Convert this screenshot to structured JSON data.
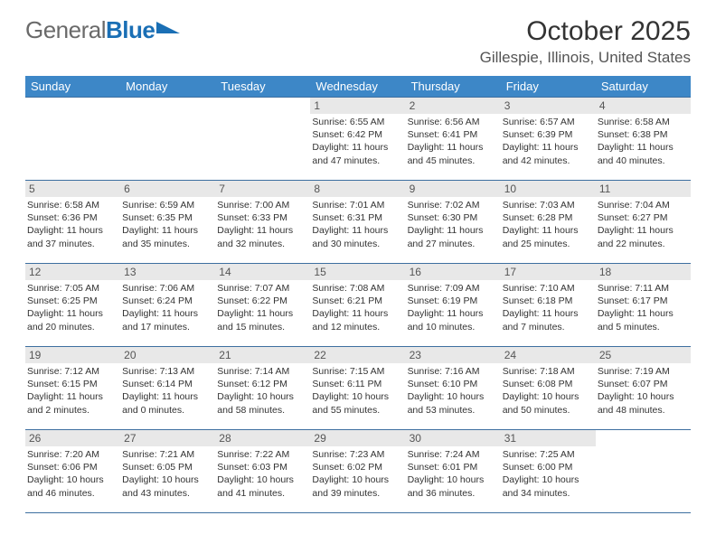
{
  "logo": {
    "part1": "General",
    "part2": "Blue"
  },
  "title": "October 2025",
  "location": "Gillespie, Illinois, United States",
  "colors": {
    "header_bg": "#3d87c7",
    "header_fg": "#ffffff",
    "daynum_bg": "#e8e8e8",
    "rule": "#3d6fa0",
    "logo_gray": "#6a6a6a",
    "logo_blue": "#1a6fb5",
    "text": "#333333",
    "background": "#ffffff"
  },
  "fonts": {
    "title_size": 30,
    "location_size": 17,
    "dayhead_size": 13,
    "daynum_size": 12,
    "body_size": 10.5
  },
  "layout": {
    "columns": 7,
    "rows": 5,
    "first_day_column": 3,
    "days_in_month": 31
  },
  "day_headers": [
    "Sunday",
    "Monday",
    "Tuesday",
    "Wednesday",
    "Thursday",
    "Friday",
    "Saturday"
  ],
  "days": [
    {
      "n": 1,
      "sr": "6:55 AM",
      "ss": "6:42 PM",
      "dl": "11 hours and 47 minutes."
    },
    {
      "n": 2,
      "sr": "6:56 AM",
      "ss": "6:41 PM",
      "dl": "11 hours and 45 minutes."
    },
    {
      "n": 3,
      "sr": "6:57 AM",
      "ss": "6:39 PM",
      "dl": "11 hours and 42 minutes."
    },
    {
      "n": 4,
      "sr": "6:58 AM",
      "ss": "6:38 PM",
      "dl": "11 hours and 40 minutes."
    },
    {
      "n": 5,
      "sr": "6:58 AM",
      "ss": "6:36 PM",
      "dl": "11 hours and 37 minutes."
    },
    {
      "n": 6,
      "sr": "6:59 AM",
      "ss": "6:35 PM",
      "dl": "11 hours and 35 minutes."
    },
    {
      "n": 7,
      "sr": "7:00 AM",
      "ss": "6:33 PM",
      "dl": "11 hours and 32 minutes."
    },
    {
      "n": 8,
      "sr": "7:01 AM",
      "ss": "6:31 PM",
      "dl": "11 hours and 30 minutes."
    },
    {
      "n": 9,
      "sr": "7:02 AM",
      "ss": "6:30 PM",
      "dl": "11 hours and 27 minutes."
    },
    {
      "n": 10,
      "sr": "7:03 AM",
      "ss": "6:28 PM",
      "dl": "11 hours and 25 minutes."
    },
    {
      "n": 11,
      "sr": "7:04 AM",
      "ss": "6:27 PM",
      "dl": "11 hours and 22 minutes."
    },
    {
      "n": 12,
      "sr": "7:05 AM",
      "ss": "6:25 PM",
      "dl": "11 hours and 20 minutes."
    },
    {
      "n": 13,
      "sr": "7:06 AM",
      "ss": "6:24 PM",
      "dl": "11 hours and 17 minutes."
    },
    {
      "n": 14,
      "sr": "7:07 AM",
      "ss": "6:22 PM",
      "dl": "11 hours and 15 minutes."
    },
    {
      "n": 15,
      "sr": "7:08 AM",
      "ss": "6:21 PM",
      "dl": "11 hours and 12 minutes."
    },
    {
      "n": 16,
      "sr": "7:09 AM",
      "ss": "6:19 PM",
      "dl": "11 hours and 10 minutes."
    },
    {
      "n": 17,
      "sr": "7:10 AM",
      "ss": "6:18 PM",
      "dl": "11 hours and 7 minutes."
    },
    {
      "n": 18,
      "sr": "7:11 AM",
      "ss": "6:17 PM",
      "dl": "11 hours and 5 minutes."
    },
    {
      "n": 19,
      "sr": "7:12 AM",
      "ss": "6:15 PM",
      "dl": "11 hours and 2 minutes."
    },
    {
      "n": 20,
      "sr": "7:13 AM",
      "ss": "6:14 PM",
      "dl": "11 hours and 0 minutes."
    },
    {
      "n": 21,
      "sr": "7:14 AM",
      "ss": "6:12 PM",
      "dl": "10 hours and 58 minutes."
    },
    {
      "n": 22,
      "sr": "7:15 AM",
      "ss": "6:11 PM",
      "dl": "10 hours and 55 minutes."
    },
    {
      "n": 23,
      "sr": "7:16 AM",
      "ss": "6:10 PM",
      "dl": "10 hours and 53 minutes."
    },
    {
      "n": 24,
      "sr": "7:18 AM",
      "ss": "6:08 PM",
      "dl": "10 hours and 50 minutes."
    },
    {
      "n": 25,
      "sr": "7:19 AM",
      "ss": "6:07 PM",
      "dl": "10 hours and 48 minutes."
    },
    {
      "n": 26,
      "sr": "7:20 AM",
      "ss": "6:06 PM",
      "dl": "10 hours and 46 minutes."
    },
    {
      "n": 27,
      "sr": "7:21 AM",
      "ss": "6:05 PM",
      "dl": "10 hours and 43 minutes."
    },
    {
      "n": 28,
      "sr": "7:22 AM",
      "ss": "6:03 PM",
      "dl": "10 hours and 41 minutes."
    },
    {
      "n": 29,
      "sr": "7:23 AM",
      "ss": "6:02 PM",
      "dl": "10 hours and 39 minutes."
    },
    {
      "n": 30,
      "sr": "7:24 AM",
      "ss": "6:01 PM",
      "dl": "10 hours and 36 minutes."
    },
    {
      "n": 31,
      "sr": "7:25 AM",
      "ss": "6:00 PM",
      "dl": "10 hours and 34 minutes."
    }
  ],
  "labels": {
    "sunrise": "Sunrise:",
    "sunset": "Sunset:",
    "daylight": "Daylight:"
  }
}
